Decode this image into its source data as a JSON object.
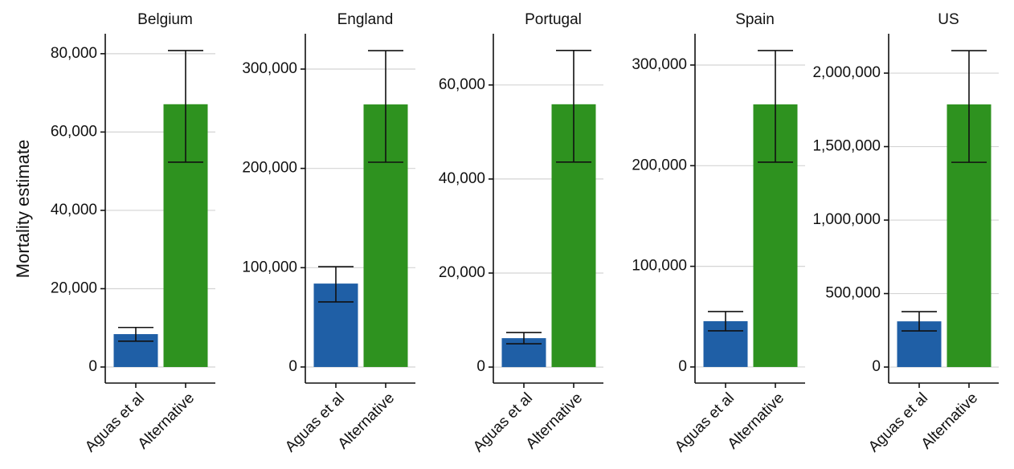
{
  "chart_data": [
    {
      "type": "bar",
      "title": "Belgium",
      "ylabel": "Mortality estimate",
      "categories": [
        "Aguas et al",
        "Alternative"
      ],
      "values": [
        8400,
        67100
      ],
      "lower": [
        6600,
        52300
      ],
      "upper": [
        10100,
        80800
      ],
      "colors": [
        "#1f5fa6",
        "#2e921f"
      ],
      "ylim": [
        -4100,
        85100
      ],
      "yticks": [
        0,
        {
          "value": 20000,
          "label": "20,000"
        },
        {
          "value": 40000,
          "label": "40,000"
        },
        {
          "value": 60000,
          "label": "60,000"
        },
        {
          "value": 80000,
          "label": "80,000"
        }
      ],
      "grid": true
    },
    {
      "type": "bar",
      "title": "England",
      "categories": [
        "Aguas et al",
        "Alternative"
      ],
      "values": [
        84000,
        264400
      ],
      "lower": [
        65500,
        206200
      ],
      "upper": [
        101000,
        318600
      ],
      "colors": [
        "#1f5fa6",
        "#2e921f"
      ],
      "ylim": [
        -16200,
        335600
      ],
      "yticks": [
        0,
        {
          "value": 100000,
          "label": "100,000"
        },
        {
          "value": 200000,
          "label": "200,000"
        },
        {
          "value": 300000,
          "label": "300,000"
        }
      ],
      "grid": true
    },
    {
      "type": "bar",
      "title": "Portugal",
      "categories": [
        "Aguas et al",
        "Alternative"
      ],
      "values": [
        6150,
        55900
      ],
      "lower": [
        4960,
        43600
      ],
      "upper": [
        7350,
        67350
      ],
      "colors": [
        "#1f5fa6",
        "#2e921f"
      ],
      "ylim": [
        -3400,
        70900
      ],
      "yticks": [
        0,
        {
          "value": 20000,
          "label": "20,000"
        },
        {
          "value": 40000,
          "label": "40,000"
        },
        {
          "value": 60000,
          "label": "60,000"
        }
      ],
      "grid": true
    },
    {
      "type": "bar",
      "title": "Spain",
      "categories": [
        "Aguas et al",
        "Alternative"
      ],
      "values": [
        45500,
        260900
      ],
      "lower": [
        35900,
        203500
      ],
      "upper": [
        55100,
        314400
      ],
      "colors": [
        "#1f5fa6",
        "#2e921f"
      ],
      "ylim": [
        -16000,
        331100
      ],
      "yticks": [
        0,
        {
          "value": 100000,
          "label": "100,000"
        },
        {
          "value": 200000,
          "label": "200,000"
        },
        {
          "value": 300000,
          "label": "300,000"
        }
      ],
      "grid": true
    },
    {
      "type": "bar",
      "title": "US",
      "categories": [
        "Aguas et al",
        "Alternative"
      ],
      "values": [
        311000,
        1787000
      ],
      "lower": [
        246000,
        1393000
      ],
      "upper": [
        377000,
        2153000
      ],
      "colors": [
        "#1f5fa6",
        "#2e921f"
      ],
      "ylim": [
        -109000,
        2268000
      ],
      "yticks": [
        0,
        {
          "value": 500000,
          "label": "500,000"
        },
        {
          "value": 1000000,
          "label": "1,000,000"
        },
        {
          "value": 1500000,
          "label": "1,500,000"
        },
        {
          "value": 2000000,
          "label": "2,000,000"
        }
      ],
      "grid": true
    }
  ]
}
